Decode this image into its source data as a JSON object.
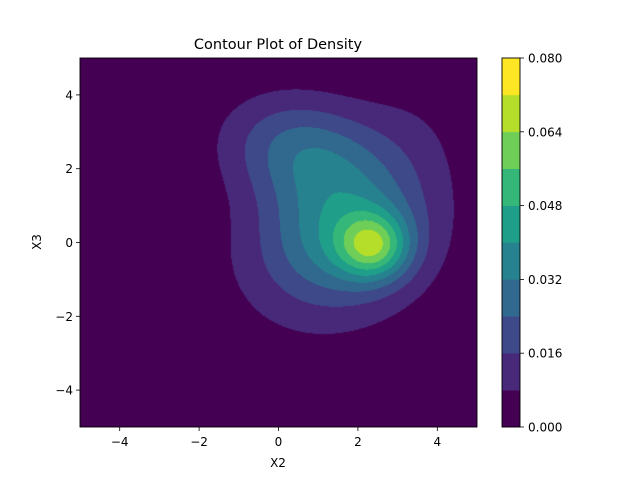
{
  "chart_data": {
    "type": "contour",
    "title": "Contour Plot of Density",
    "xlabel": "X2",
    "ylabel": "X3",
    "xlim": [
      -5,
      5
    ],
    "ylim": [
      -5,
      5
    ],
    "x_ticks": [
      -4,
      -2,
      0,
      2,
      4
    ],
    "y_ticks": [
      -4,
      -2,
      0,
      2,
      4
    ],
    "x_tick_labels": [
      "−4",
      "−2",
      "0",
      "2",
      "4"
    ],
    "y_tick_labels": [
      "−4",
      "−2",
      "0",
      "2",
      "4"
    ],
    "colorbar": {
      "levels": [
        0.0,
        0.008,
        0.016,
        0.024,
        0.032,
        0.04,
        0.048,
        0.056,
        0.064,
        0.072,
        0.08
      ],
      "ticks": [
        0.0,
        0.016,
        0.032,
        0.048,
        0.064,
        0.08
      ],
      "tick_labels": [
        "0.000",
        "0.016",
        "0.032",
        "0.048",
        "0.064",
        "0.080"
      ],
      "colors": [
        "#440154",
        "#482878",
        "#3e4989",
        "#31688e",
        "#26828e",
        "#1f9e89",
        "#35b779",
        "#6ece58",
        "#b5de2b",
        "#fde725"
      ]
    },
    "density_peak": {
      "x": 2.4,
      "y": -0.1,
      "value": 0.077
    },
    "grid": false,
    "legend": "none"
  }
}
